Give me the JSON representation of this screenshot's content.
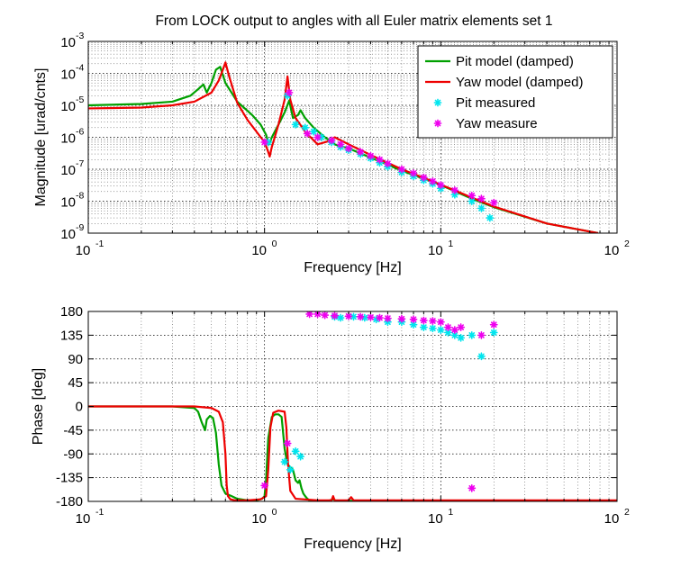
{
  "figure_title": "From LOCK output to angles with all Euler matrix elements set 1",
  "colors": {
    "pit_model": "#00a000",
    "yaw_model": "#ee0000",
    "pit_measured": "#00e5ee",
    "yaw_measured": "#ee00ee"
  },
  "chart_data": [
    {
      "type": "line",
      "panel": "magnitude",
      "xlabel": "Frequency [Hz]",
      "ylabel": "Magnitude [urad/cnts]",
      "xscale": "log",
      "yscale": "log",
      "xlim": [
        0.1,
        100
      ],
      "ylim": [
        1e-09,
        0.001
      ],
      "grid": true,
      "legend_position": "top-right",
      "x_ticks": [
        {
          "base": "10",
          "exp": "-1"
        },
        {
          "base": "10",
          "exp": "0"
        },
        {
          "base": "10",
          "exp": "1"
        },
        {
          "base": "10",
          "exp": "2"
        }
      ],
      "y_ticks": [
        {
          "base": "10",
          "exp": "-9"
        },
        {
          "base": "10",
          "exp": "-8"
        },
        {
          "base": "10",
          "exp": "-7"
        },
        {
          "base": "10",
          "exp": "-6"
        },
        {
          "base": "10",
          "exp": "-5"
        },
        {
          "base": "10",
          "exp": "-4"
        },
        {
          "base": "10",
          "exp": "-3"
        }
      ],
      "series": [
        {
          "name": "Pit model (damped)",
          "kind": "line",
          "color": "#00a000",
          "x": [
            0.1,
            0.2,
            0.3,
            0.38,
            0.42,
            0.45,
            0.47,
            0.5,
            0.53,
            0.56,
            0.6,
            0.7,
            0.85,
            0.95,
            1.02,
            1.06,
            1.1,
            1.2,
            1.3,
            1.38,
            1.45,
            1.55,
            1.6,
            1.7,
            1.9,
            2.2,
            2.5,
            3.0,
            4.0,
            6.0,
            10,
            15,
            20,
            40,
            78
          ],
          "y": [
            1e-05,
            1.1e-05,
            1.3e-05,
            2e-05,
            3.2e-05,
            4.5e-05,
            2.5e-05,
            5e-05,
            0.00013,
            0.00016,
            5e-05,
            1.3e-05,
            5e-06,
            2.5e-06,
            1.2e-06,
            6e-07,
            1e-06,
            2.5e-06,
            6e-06,
            1.4e-05,
            4e-06,
            5e-06,
            7e-06,
            4e-06,
            2e-06,
            1e-06,
            6e-07,
            4.5e-07,
            2.3e-07,
            9e-08,
            3.2e-08,
            1.2e-08,
            6.5e-09,
            2e-09,
            1e-09
          ]
        },
        {
          "name": "Yaw model (damped)",
          "kind": "line",
          "color": "#ee0000",
          "x": [
            0.1,
            0.2,
            0.3,
            0.4,
            0.5,
            0.55,
            0.58,
            0.6,
            0.63,
            0.7,
            0.8,
            0.9,
            1.0,
            1.04,
            1.07,
            1.1,
            1.2,
            1.3,
            1.35,
            1.4,
            1.5,
            1.7,
            2.0,
            2.3,
            2.5,
            3.0,
            4.0,
            6.0,
            10,
            15,
            20,
            40,
            78
          ],
          "y": [
            8e-06,
            8.5e-06,
            1e-05,
            1.3e-05,
            2.5e-05,
            6e-05,
            0.00013,
            0.00022,
            8e-05,
            1.2e-05,
            3.5e-06,
            1.5e-06,
            7e-07,
            4e-07,
            2.5e-07,
            5e-07,
            2.5e-06,
            1.5e-05,
            8e-05,
            1.5e-05,
            4e-06,
            1.5e-06,
            6e-07,
            7.5e-07,
            1e-06,
            6e-07,
            2.8e-07,
            1e-07,
            3.3e-08,
            1.3e-08,
            6.8e-09,
            2e-09,
            1e-09
          ]
        },
        {
          "name": "Pit measured",
          "kind": "markers",
          "color": "#00e5ee",
          "x": [
            1.05,
            1.35,
            1.5,
            1.7,
            1.9,
            2.1,
            2.4,
            2.7,
            3.0,
            3.5,
            4.0,
            4.5,
            5.0,
            6.0,
            7.0,
            8.0,
            9.0,
            10,
            12,
            15,
            17,
            19
          ],
          "y": [
            7e-07,
            2e-05,
            2.5e-06,
            2e-06,
            1.5e-06,
            1e-06,
            7e-07,
            5e-07,
            4e-07,
            3e-07,
            2.2e-07,
            1.6e-07,
            1.2e-07,
            8e-08,
            6e-08,
            4.5e-08,
            3.5e-08,
            2.5e-08,
            1.6e-08,
            1e-08,
            6e-09,
            3e-09
          ]
        },
        {
          "name": "Yaw measure",
          "kind": "markers",
          "color": "#ee00ee",
          "x": [
            1.0,
            1.38,
            1.75,
            2.0,
            2.4,
            2.7,
            3.0,
            3.5,
            4.0,
            4.5,
            5.0,
            6.0,
            7.0,
            8.0,
            9.0,
            10,
            12,
            15,
            17,
            20
          ],
          "y": [
            7e-07,
            2.5e-05,
            1.3e-06,
            1e-06,
            8e-07,
            6e-07,
            4.5e-07,
            3.5e-07,
            2.6e-07,
            2e-07,
            1.5e-07,
            1e-07,
            7.5e-08,
            5.5e-08,
            4.2e-08,
            3.2e-08,
            2.2e-08,
            1.5e-08,
            1.2e-08,
            9e-09
          ]
        }
      ]
    },
    {
      "type": "line",
      "panel": "phase",
      "xlabel": "Frequency [Hz]",
      "ylabel": "Phase [deg]",
      "xscale": "log",
      "yscale": "linear",
      "xlim": [
        0.1,
        100
      ],
      "ylim": [
        -180,
        180
      ],
      "grid": true,
      "x_ticks": [
        {
          "base": "10",
          "exp": "-1"
        },
        {
          "base": "10",
          "exp": "0"
        },
        {
          "base": "10",
          "exp": "1"
        },
        {
          "base": "10",
          "exp": "2"
        }
      ],
      "y_ticks": [
        "180",
        "135",
        "90",
        "45",
        "0",
        "-45",
        "-90",
        "-135",
        "-180"
      ],
      "series": [
        {
          "name": "Pit model (damped)",
          "kind": "line",
          "color": "#00a000",
          "x": [
            0.1,
            0.3,
            0.4,
            0.42,
            0.44,
            0.46,
            0.47,
            0.49,
            0.51,
            0.53,
            0.55,
            0.57,
            0.6,
            0.65,
            0.7,
            0.8,
            0.9,
            0.97,
            1.0,
            1.02,
            1.05,
            1.1,
            1.15,
            1.2,
            1.25,
            1.3,
            1.35,
            1.4,
            1.45,
            1.5,
            1.55,
            1.58,
            1.62,
            1.66,
            1.7,
            1.75,
            1.8,
            2.0,
            2.3,
            2.45,
            2.55,
            2.7,
            3.0,
            5.0,
            10,
            30,
            100
          ],
          "y": [
            0,
            0,
            -3,
            -10,
            -30,
            -45,
            -25,
            -18,
            -22,
            -50,
            -110,
            -150,
            -165,
            -170,
            -175,
            -178,
            -178,
            -175,
            -170,
            -140,
            -60,
            -20,
            -15,
            -15,
            -20,
            -80,
            -110,
            -115,
            -120,
            -140,
            -145,
            -140,
            -155,
            -165,
            -170,
            -175,
            -178,
            -179,
            -179,
            -176,
            -179,
            -179,
            -179,
            -179,
            -179,
            -179,
            -179
          ]
        },
        {
          "name": "Yaw model (damped)",
          "kind": "line",
          "color": "#ee0000",
          "x": [
            0.1,
            0.4,
            0.5,
            0.55,
            0.58,
            0.6,
            0.61,
            0.62,
            0.64,
            0.68,
            0.8,
            0.95,
            1.02,
            1.05,
            1.08,
            1.12,
            1.2,
            1.3,
            1.33,
            1.36,
            1.4,
            1.5,
            2.0,
            2.4,
            2.45,
            2.5,
            3.0,
            3.1,
            3.2,
            4.0,
            10,
            100
          ],
          "y": [
            0,
            0,
            -3,
            -10,
            -30,
            -90,
            -150,
            -170,
            -176,
            -178,
            -178,
            -176,
            -170,
            -120,
            -40,
            -12,
            -8,
            -10,
            -40,
            -110,
            -160,
            -175,
            -178,
            -178,
            -170,
            -178,
            -178,
            -172,
            -178,
            -178,
            -178,
            -178
          ]
        },
        {
          "name": "Pit measured",
          "kind": "markers",
          "color": "#00e5ee",
          "x": [
            1.3,
            1.4,
            1.5,
            1.6,
            2.5,
            2.7,
            3.2,
            3.7,
            4.3,
            5.0,
            6.0,
            7.0,
            8.0,
            9.0,
            10,
            11,
            12,
            13,
            15,
            17,
            20
          ],
          "y": [
            -105,
            -120,
            -85,
            -95,
            170,
            168,
            170,
            168,
            165,
            160,
            160,
            155,
            150,
            148,
            145,
            140,
            135,
            130,
            135,
            95,
            140
          ]
        },
        {
          "name": "Yaw measure",
          "kind": "markers",
          "color": "#ee00ee",
          "x": [
            1.0,
            1.35,
            1.8,
            2.0,
            2.2,
            2.5,
            3.0,
            3.5,
            4.0,
            4.5,
            5.0,
            6.0,
            7.0,
            8.0,
            9.0,
            10,
            11,
            12,
            13,
            15,
            17,
            20
          ],
          "y": [
            -150,
            -70,
            175,
            175,
            173,
            172,
            171,
            170,
            169,
            168,
            167,
            166,
            165,
            163,
            162,
            160,
            150,
            145,
            150,
            -155,
            135,
            155
          ]
        }
      ]
    }
  ]
}
